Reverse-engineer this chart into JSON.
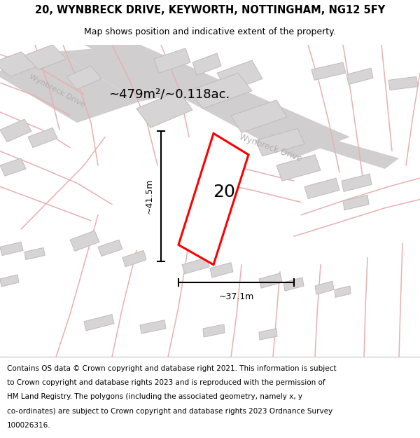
{
  "title_line1": "20, WYNBRECK DRIVE, KEYWORTH, NOTTINGHAM, NG12 5FY",
  "title_line2": "Map shows position and indicative extent of the property.",
  "area_label": "~479m²/~0.118ac.",
  "property_number": "20",
  "dim_height": "~41.5m",
  "dim_width": "~37.1m",
  "street_label_topleft": "Wynbreck Drive",
  "street_label_main": "Wynbreck Drive",
  "footer_lines": [
    "Contains OS data © Crown copyright and database right 2021. This information is subject",
    "to Crown copyright and database rights 2023 and is reproduced with the permission of",
    "HM Land Registry. The polygons (including the associated geometry, namely x, y",
    "co-ordinates) are subject to Crown copyright and database rights 2023 Ordnance Survey",
    "100026316."
  ],
  "bg_color": "#faf8f8",
  "road_gray_color": "#d0cece",
  "road_pink_color": "#e8b0b0",
  "building_fill": "#d6d4d4",
  "building_edge": "#c0bcbc",
  "plot_color": "#ff0000",
  "plot_fill": "#ffffff",
  "title_fontsize": 10.5,
  "subtitle_fontsize": 9,
  "area_fontsize": 13,
  "number_fontsize": 18,
  "dim_fontsize": 9,
  "footer_fontsize": 7.5,
  "street_fontsize": 8
}
